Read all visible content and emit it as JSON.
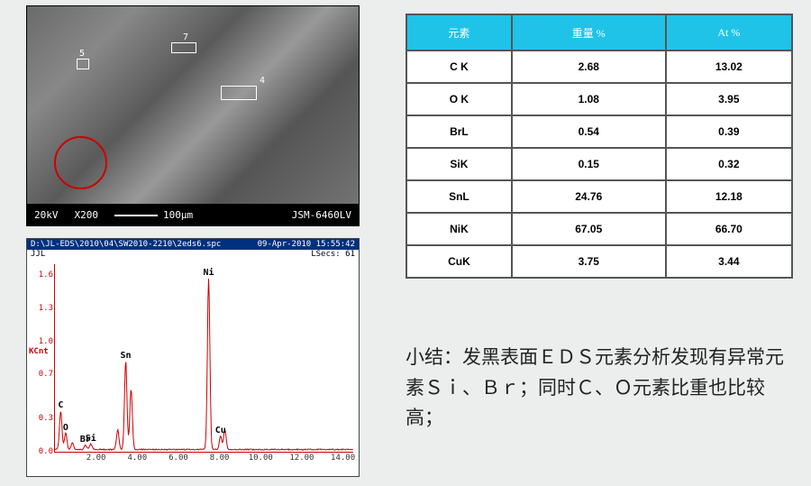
{
  "sem_image": {
    "kv": "20kV",
    "mag": "X200",
    "scale": "100μm",
    "model": "JSM-6460LV",
    "markers": [
      "4",
      "5",
      "7"
    ]
  },
  "spectrum": {
    "file_path": "D:\\JL-EDS\\2010\\04\\SW2010-2210\\2eds6.spc",
    "date": "09-Apr-2010 15:55:42",
    "user": "JJL",
    "lsecs": "LSecs: 61",
    "ylabel": "KCnt",
    "x_ticks": [
      "2.00",
      "4.00",
      "6.00",
      "8.00",
      "10.00",
      "12.00",
      "14.00"
    ],
    "y_ticks": [
      "0.0",
      "0.3",
      "0.7",
      "1.0",
      "1.3",
      "1.6"
    ],
    "x_max": 14.5,
    "y_max": 1.7,
    "line_color": "#cc0000",
    "axis_color": "#cc0000",
    "background": "#ffffff",
    "peaks": [
      {
        "label": "C",
        "x": 0.28,
        "height": 0.35
      },
      {
        "label": "O",
        "x": 0.52,
        "height": 0.15
      },
      {
        "label": "Si",
        "x": 1.74,
        "height": 0.05
      },
      {
        "label": "Br",
        "x": 1.48,
        "height": 0.04
      },
      {
        "label": "Sn",
        "x": 3.44,
        "height": 0.8
      },
      {
        "label": "",
        "x": 3.7,
        "height": 0.55
      },
      {
        "label": "",
        "x": 3.05,
        "height": 0.18
      },
      {
        "label": "Ni",
        "x": 7.47,
        "height": 1.55
      },
      {
        "label": "Cu",
        "x": 8.05,
        "height": 0.12
      },
      {
        "label": "",
        "x": 8.26,
        "height": 0.18
      },
      {
        "label": "",
        "x": 0.85,
        "height": 0.06
      }
    ]
  },
  "table": {
    "header_bg": "#1fc3e8",
    "header_color": "#ffffff",
    "border_color": "#555555",
    "columns": [
      "元素",
      "重量 %",
      "At %"
    ],
    "rows": [
      [
        "C K",
        "2.68",
        "13.02"
      ],
      [
        "O K",
        "1.08",
        "3.95"
      ],
      [
        "BrL",
        "0.54",
        "0.39"
      ],
      [
        "SiK",
        "0.15",
        "0.32"
      ],
      [
        "SnL",
        "24.76",
        "12.18"
      ],
      [
        "NiK",
        "67.05",
        "66.70"
      ],
      [
        "CuK",
        "3.75",
        "3.44"
      ]
    ]
  },
  "summary": {
    "text": "小结：发黑表面ＥＤＳ元素分析发现有异常元素Ｓｉ、Ｂｒ；同时Ｃ、Ｏ元素比重也比较高；"
  }
}
